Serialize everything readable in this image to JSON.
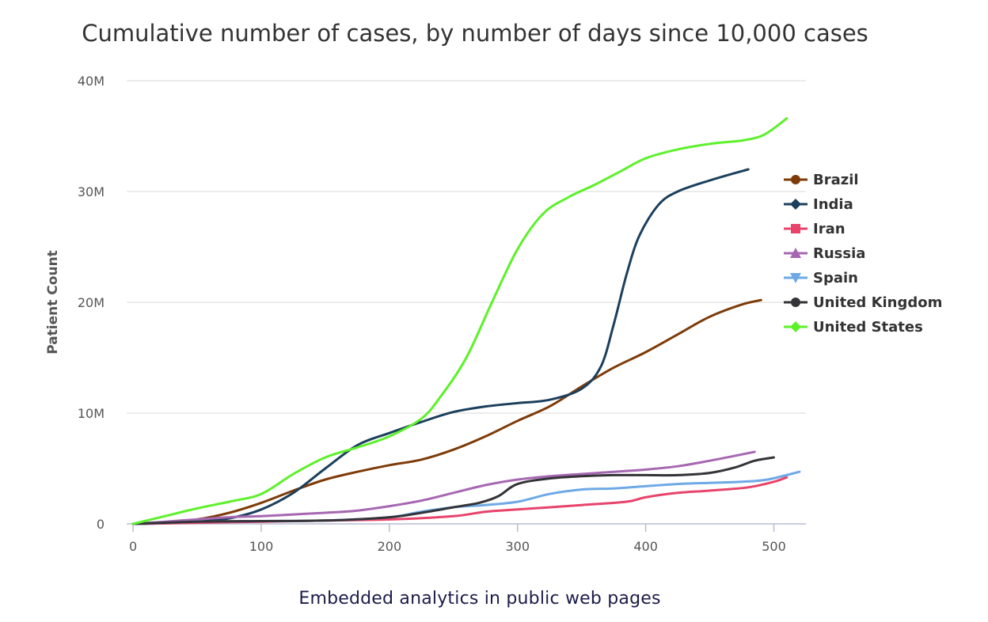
{
  "page": {
    "caption": "Embedded analytics in public web pages"
  },
  "chart_data": {
    "type": "line",
    "title": "Cumulative number of cases, by number of days since 10,000 cases",
    "xlabel": "",
    "ylabel": "Patient Count",
    "xlim": [
      -5,
      525
    ],
    "ylim": [
      0,
      40000000
    ],
    "x_ticks": [
      0,
      100,
      200,
      300,
      400,
      500
    ],
    "x_tick_labels": [
      "0",
      "100",
      "200",
      "300",
      "400",
      "500"
    ],
    "y_ticks": [
      0,
      10000000,
      20000000,
      30000000,
      40000000
    ],
    "y_tick_labels": [
      "0",
      "10M",
      "20M",
      "30M",
      "40M"
    ],
    "grid": true,
    "legend_position": "right",
    "series": [
      {
        "name": "Brazil",
        "color": "#7e3b08",
        "marker": "circle",
        "x": [
          0,
          25,
          50,
          75,
          100,
          125,
          150,
          175,
          200,
          225,
          250,
          275,
          300,
          325,
          350,
          375,
          400,
          425,
          450,
          475,
          490
        ],
        "values": [
          0,
          150000,
          400000,
          1000000,
          1900000,
          3000000,
          4000000,
          4700000,
          5300000,
          5800000,
          6700000,
          7900000,
          9300000,
          10600000,
          12400000,
          14100000,
          15500000,
          17100000,
          18700000,
          19800000,
          20200000
        ]
      },
      {
        "name": "India",
        "color": "#1b3f5c",
        "marker": "diamond",
        "x": [
          0,
          25,
          50,
          75,
          100,
          125,
          150,
          175,
          200,
          225,
          250,
          275,
          300,
          325,
          350,
          365,
          375,
          385,
          395,
          410,
          425,
          450,
          480
        ],
        "values": [
          0,
          50000,
          200000,
          500000,
          1300000,
          2800000,
          5000000,
          7100000,
          8200000,
          9200000,
          10100000,
          10600000,
          10900000,
          11200000,
          12200000,
          14200000,
          18000000,
          22500000,
          26000000,
          28800000,
          30000000,
          31000000,
          32000000
        ]
      },
      {
        "name": "Iran",
        "color": "#e8436b",
        "marker": "square",
        "x": [
          0,
          50,
          100,
          150,
          200,
          250,
          275,
          300,
          350,
          385,
          400,
          425,
          450,
          480,
          500,
          510
        ],
        "values": [
          0,
          100000,
          200000,
          300000,
          400000,
          700000,
          1100000,
          1300000,
          1700000,
          2000000,
          2400000,
          2800000,
          3000000,
          3300000,
          3800000,
          4200000
        ]
      },
      {
        "name": "Russia",
        "color": "#a667b1",
        "marker": "triangle",
        "x": [
          0,
          25,
          50,
          75,
          100,
          125,
          150,
          175,
          200,
          225,
          250,
          275,
          300,
          325,
          350,
          375,
          400,
          425,
          450,
          485
        ],
        "values": [
          0,
          200000,
          400000,
          600000,
          700000,
          850000,
          1000000,
          1200000,
          1600000,
          2100000,
          2800000,
          3500000,
          4000000,
          4300000,
          4500000,
          4700000,
          4900000,
          5200000,
          5700000,
          6500000
        ]
      },
      {
        "name": "Spain",
        "color": "#6ea9e6",
        "marker": "triangle-down",
        "x": [
          0,
          50,
          100,
          150,
          200,
          225,
          250,
          275,
          300,
          325,
          350,
          375,
          400,
          425,
          450,
          475,
          495,
          520
        ],
        "values": [
          0,
          200000,
          250000,
          300000,
          600000,
          1100000,
          1500000,
          1700000,
          2000000,
          2700000,
          3100000,
          3200000,
          3400000,
          3600000,
          3700000,
          3800000,
          4000000,
          4700000
        ]
      },
      {
        "name": "United Kingdom",
        "color": "#333338",
        "marker": "circle",
        "x": [
          0,
          50,
          100,
          150,
          200,
          225,
          250,
          270,
          285,
          300,
          325,
          350,
          375,
          400,
          425,
          450,
          470,
          485,
          500
        ],
        "values": [
          0,
          200000,
          250000,
          300000,
          600000,
          1000000,
          1500000,
          1900000,
          2500000,
          3600000,
          4100000,
          4300000,
          4400000,
          4400000,
          4400000,
          4600000,
          5100000,
          5700000,
          6000000
        ]
      },
      {
        "name": "United States",
        "color": "#5cf12a",
        "marker": "diamond",
        "x": [
          0,
          25,
          50,
          75,
          100,
          125,
          150,
          175,
          200,
          225,
          240,
          260,
          280,
          300,
          320,
          340,
          360,
          380,
          400,
          425,
          450,
          475,
          490,
          500,
          510
        ],
        "values": [
          0,
          700000,
          1400000,
          2000000,
          2700000,
          4500000,
          6000000,
          6900000,
          7900000,
          9500000,
          11500000,
          15000000,
          20000000,
          24800000,
          28000000,
          29500000,
          30600000,
          31800000,
          33000000,
          33800000,
          34300000,
          34600000,
          35000000,
          35700000,
          36600000
        ]
      }
    ]
  }
}
